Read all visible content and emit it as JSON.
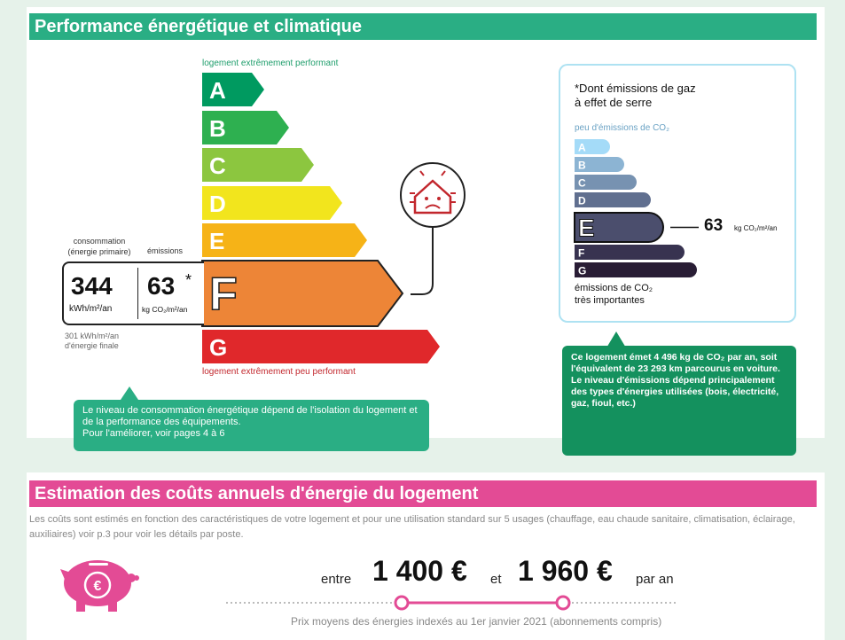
{
  "perf": {
    "title": "Performance énergétique et climatique",
    "top_label": "logement extrêmement performant",
    "bottom_label": "logement extrêmement peu performant",
    "classes": [
      {
        "letter": "A",
        "color": "#009a60"
      },
      {
        "letter": "B",
        "color": "#2eb050"
      },
      {
        "letter": "C",
        "color": "#8cc63f"
      },
      {
        "letter": "D",
        "color": "#f2e51d"
      },
      {
        "letter": "E",
        "color": "#f6b317"
      },
      {
        "letter": "F",
        "color": "#ed8537"
      },
      {
        "letter": "G",
        "color": "#e0282b"
      }
    ],
    "current_class": "F",
    "consumption_label_1": "consommation",
    "consumption_label_2": "(énergie primaire)",
    "emissions_label": "émissions",
    "consumption_value": "344",
    "consumption_unit": "kWh/m²/an",
    "emissions_value": "63",
    "emissions_star": "*",
    "emissions_unit": "kg CO₂/m²/an",
    "final_energy_1": "301 kWh/m²/an",
    "final_energy_2": "d'énergie finale",
    "bubble_text": "Le niveau de consommation énergétique dépend de l'isolation du logement et de la performance des équipements.\nPour l'améliorer, voir pages 4 à 6"
  },
  "ges": {
    "footnote_1": "*Dont émissions de gaz",
    "footnote_2": "à effet de serre",
    "top_label": "peu d'émissions de CO₂",
    "bottom_label_1": "émissions de CO₂",
    "bottom_label_2": "très importantes",
    "classes": [
      {
        "letter": "A",
        "color": "#a4dbf8"
      },
      {
        "letter": "B",
        "color": "#8cb4d3"
      },
      {
        "letter": "C",
        "color": "#7792b1"
      },
      {
        "letter": "D",
        "color": "#606f8f"
      },
      {
        "letter": "E",
        "color": "#4b4e6d"
      },
      {
        "letter": "F",
        "color": "#383350"
      },
      {
        "letter": "G",
        "color": "#291d35"
      }
    ],
    "current_class": "E",
    "value": "63",
    "unit": "kg CO₂/m²/an",
    "bubble_text": "Ce logement émet 4 496 kg de CO₂ par an, soit l'équivalent de 23 293 km parcourus en voiture.\nLe niveau d'émissions dépend principalement des types d'énergies utilisées (bois, électricité, gaz, fioul, etc.)"
  },
  "costs": {
    "title": "Estimation des coûts annuels d'énergie du logement",
    "intro": "Les coûts sont estimés en fonction des caractéristiques de votre logement et pour une utilisation standard sur 5 usages (chauffage, eau chaude sanitaire, climatisation, éclairage, auxiliaires) voir p.3 pour voir les détails par poste.",
    "between": "entre",
    "min": "1 400 €",
    "and": "et",
    "max": "1 960 €",
    "per_year": "par an",
    "note": "Prix moyens des énergies indexés au  1er janvier 2021 (abonnements compris)"
  },
  "colors": {
    "green": "#2aae84",
    "pink": "#e34b95"
  }
}
